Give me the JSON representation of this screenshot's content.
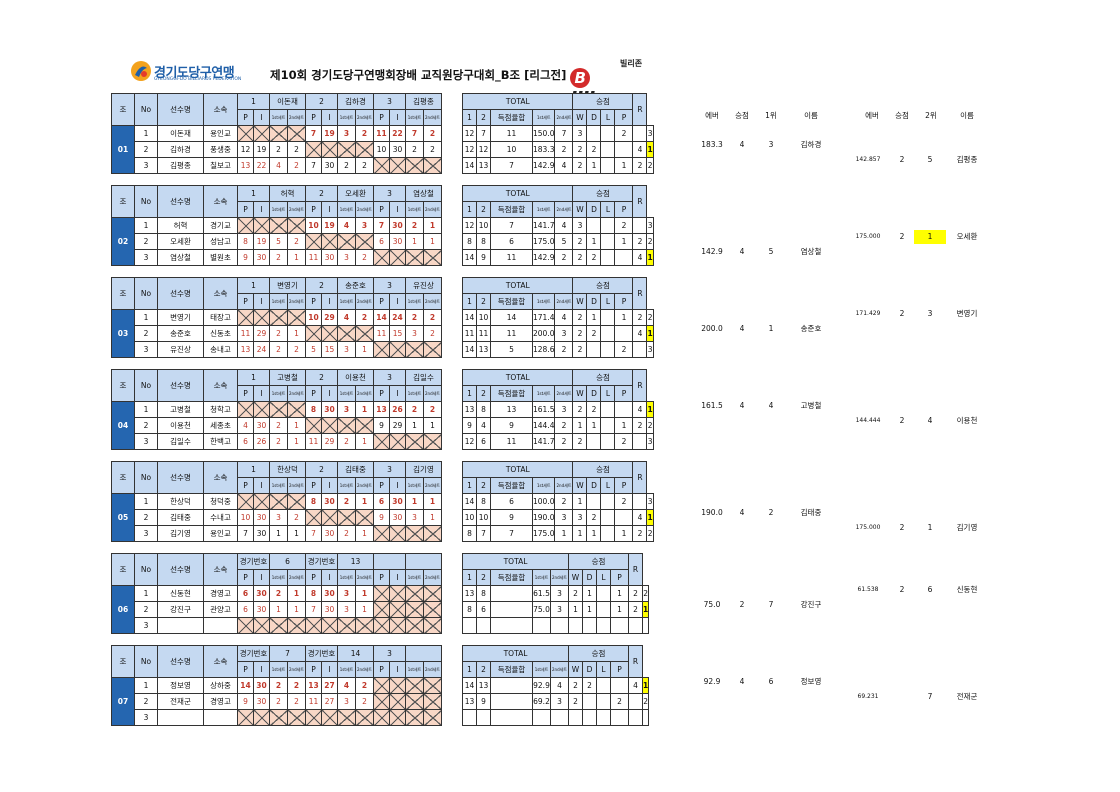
{
  "header": {
    "org_name": "경기도당구연맹",
    "org_sub": "GYEONGGI-DO BILLIARDS FEDERATION",
    "title": "제10회 경기도당구연맹회장배 교직원당구대회_B조 [리그전]",
    "sponsor_kr": "빌리존",
    "sponsor_en": "illizone",
    "sponsor_b": "B"
  },
  "labels": {
    "jo": "조",
    "no": "No",
    "player": "선수명",
    "team": "소속",
    "p": "P",
    "i": "I",
    "first": "1st세트",
    "second": "2nd세트",
    "total": "TOTAL",
    "win": "승점",
    "avg": "득점율합",
    "c1": "1",
    "c2": "2",
    "w": "W",
    "d": "D",
    "l": "L",
    "pp": "P",
    "r": "R"
  },
  "summary_headers": {
    "left": [
      "에버",
      "승점",
      "1위",
      "이름"
    ],
    "right": [
      "에버",
      "승점",
      "2위",
      "이름"
    ]
  },
  "groups": [
    {
      "jo": "01",
      "cols": [
        [
          "1",
          "이돈재"
        ],
        [
          "2",
          "김하경"
        ],
        [
          "3",
          "김평종"
        ]
      ],
      "rows": [
        {
          "no": "1",
          "name": "이돈재",
          "team": "용인교",
          "m": [
            null,
            [
              "7",
              "19",
              "3",
              "2"
            ],
            [
              "11",
              "22",
              "7",
              "2"
            ]
          ],
          "t": [
            "12",
            "7",
            "11",
            "150.0",
            "7",
            "3",
            "",
            "",
            "2",
            "",
            "3"
          ],
          "hl": false
        },
        {
          "no": "2",
          "name": "김하경",
          "team": "풍생중",
          "m": [
            [
              "12",
              "19",
              "2",
              "2"
            ],
            null,
            [
              "10",
              "30",
              "2",
              "2"
            ]
          ],
          "t": [
            "12",
            "12",
            "10",
            "183.3",
            "2",
            "2",
            "2",
            "",
            "",
            "4",
            "1"
          ],
          "hl": true
        },
        {
          "no": "3",
          "name": "김평종",
          "team": "칠보고",
          "m": [
            [
              "13",
              "22",
              "4",
              "2"
            ],
            [
              "7",
              "30",
              "2",
              "2"
            ],
            null
          ],
          "t": [
            "14",
            "13",
            "7",
            "142.9",
            "4",
            "2",
            "1",
            "",
            "1",
            "2",
            "2"
          ],
          "hl": false
        }
      ],
      "first": {
        "row": 1,
        "avg": "183.3",
        "pts": "4",
        "rank": "3",
        "name": "김하경"
      },
      "second": {
        "row": 2,
        "avg": "142.857",
        "pts": "2",
        "rank": "5",
        "name": "김평종",
        "hl": false
      }
    },
    {
      "jo": "02",
      "cols": [
        [
          "1",
          "허혁"
        ],
        [
          "2",
          "오세환"
        ],
        [
          "3",
          "염상철"
        ]
      ],
      "rows": [
        {
          "no": "1",
          "name": "허혁",
          "team": "경기교",
          "m": [
            null,
            [
              "10",
              "19",
              "4",
              "3"
            ],
            [
              "7",
              "30",
              "2",
              "1"
            ]
          ],
          "t": [
            "12",
            "10",
            "7",
            "141.7",
            "4",
            "3",
            "",
            "",
            "2",
            "",
            "3"
          ],
          "hl": false
        },
        {
          "no": "2",
          "name": "오세환",
          "team": "성남고",
          "m": [
            [
              "8",
              "19",
              "5",
              "2"
            ],
            null,
            [
              "6",
              "30",
              "1",
              "1"
            ]
          ],
          "t": [
            "8",
            "8",
            "6",
            "175.0",
            "5",
            "2",
            "1",
            "",
            "1",
            "2",
            "2"
          ],
          "hl": false
        },
        {
          "no": "3",
          "name": "염상철",
          "team": "별원초",
          "m": [
            [
              "9",
              "30",
              "2",
              "1"
            ],
            [
              "11",
              "30",
              "3",
              "2"
            ],
            null
          ],
          "t": [
            "14",
            "9",
            "11",
            "142.9",
            "2",
            "2",
            "2",
            "",
            "",
            "4",
            "1"
          ],
          "hl": true
        }
      ],
      "first": {
        "row": 2,
        "avg": "142.9",
        "pts": "4",
        "rank": "5",
        "name": "염상철"
      },
      "second": {
        "row": 1,
        "avg": "175.000",
        "pts": "2",
        "rank": "1",
        "name": "오세환",
        "hl": true
      }
    },
    {
      "jo": "03",
      "cols": [
        [
          "1",
          "변영기"
        ],
        [
          "2",
          "송준호"
        ],
        [
          "3",
          "유진상"
        ]
      ],
      "rows": [
        {
          "no": "1",
          "name": "변영기",
          "team": "태장고",
          "m": [
            null,
            [
              "10",
              "29",
              "4",
              "2"
            ],
            [
              "14",
              "24",
              "2",
              "2"
            ]
          ],
          "t": [
            "14",
            "10",
            "14",
            "171.4",
            "4",
            "2",
            "1",
            "",
            "1",
            "2",
            "2"
          ],
          "hl": false
        },
        {
          "no": "2",
          "name": "송준호",
          "team": "신동초",
          "m": [
            [
              "11",
              "29",
              "2",
              "1"
            ],
            null,
            [
              "11",
              "15",
              "3",
              "2"
            ]
          ],
          "t": [
            "11",
            "11",
            "11",
            "200.0",
            "3",
            "2",
            "2",
            "",
            "",
            "4",
            "1"
          ],
          "hl": true
        },
        {
          "no": "3",
          "name": "유진상",
          "team": "송내고",
          "m": [
            [
              "13",
              "24",
              "2",
              "2"
            ],
            [
              "5",
              "15",
              "3",
              "1"
            ],
            null
          ],
          "t": [
            "14",
            "13",
            "5",
            "128.6",
            "2",
            "2",
            "",
            "",
            "2",
            "",
            "3"
          ],
          "hl": false
        }
      ],
      "first": {
        "row": 1,
        "avg": "200.0",
        "pts": "4",
        "rank": "1",
        "name": "송준호"
      },
      "second": {
        "row": 0,
        "avg": "171.429",
        "pts": "2",
        "rank": "3",
        "name": "변영기",
        "hl": false
      }
    },
    {
      "jo": "04",
      "cols": [
        [
          "1",
          "고병철"
        ],
        [
          "2",
          "이용천"
        ],
        [
          "3",
          "김일수"
        ]
      ],
      "rows": [
        {
          "no": "1",
          "name": "고병철",
          "team": "청학고",
          "m": [
            null,
            [
              "8",
              "30",
              "3",
              "1"
            ],
            [
              "13",
              "26",
              "2",
              "2"
            ]
          ],
          "t": [
            "13",
            "8",
            "13",
            "161.5",
            "3",
            "2",
            "2",
            "",
            "",
            "4",
            "1"
          ],
          "hl": true
        },
        {
          "no": "2",
          "name": "이용천",
          "team": "세종초",
          "m": [
            [
              "4",
              "30",
              "2",
              "1"
            ],
            null,
            [
              "9",
              "29",
              "1",
              "1"
            ]
          ],
          "t": [
            "9",
            "4",
            "9",
            "144.4",
            "2",
            "1",
            "1",
            "",
            "1",
            "2",
            "2"
          ],
          "hl": false
        },
        {
          "no": "3",
          "name": "김일수",
          "team": "한백고",
          "m": [
            [
              "6",
              "26",
              "2",
              "1"
            ],
            [
              "11",
              "29",
              "2",
              "1"
            ],
            null
          ],
          "t": [
            "12",
            "6",
            "11",
            "141.7",
            "2",
            "2",
            "",
            "",
            "2",
            "",
            "3"
          ],
          "hl": false
        }
      ],
      "first": {
        "row": 0,
        "avg": "161.5",
        "pts": "4",
        "rank": "4",
        "name": "고병철"
      },
      "second": {
        "row": 1,
        "avg": "144.444",
        "pts": "2",
        "rank": "4",
        "name": "이용천",
        "hl": false
      }
    },
    {
      "jo": "05",
      "cols": [
        [
          "1",
          "한상덕"
        ],
        [
          "2",
          "김태중"
        ],
        [
          "3",
          "김기영"
        ]
      ],
      "rows": [
        {
          "no": "1",
          "name": "한상덕",
          "team": "청덕중",
          "m": [
            null,
            [
              "8",
              "30",
              "2",
              "1"
            ],
            [
              "6",
              "30",
              "1",
              "1"
            ]
          ],
          "t": [
            "14",
            "8",
            "6",
            "100.0",
            "2",
            "1",
            "",
            "",
            "2",
            "",
            "3"
          ],
          "hl": false
        },
        {
          "no": "2",
          "name": "김태중",
          "team": "수내고",
          "m": [
            [
              "10",
              "30",
              "3",
              "2"
            ],
            null,
            [
              "9",
              "30",
              "3",
              "1"
            ]
          ],
          "t": [
            "10",
            "10",
            "9",
            "190.0",
            "3",
            "3",
            "2",
            "",
            "",
            "4",
            "1"
          ],
          "hl": true
        },
        {
          "no": "3",
          "name": "김기영",
          "team": "용인교",
          "m": [
            [
              "7",
              "30",
              "1",
              "1"
            ],
            [
              "7",
              "30",
              "2",
              "1"
            ],
            null
          ],
          "t": [
            "8",
            "7",
            "7",
            "175.0",
            "1",
            "1",
            "1",
            "",
            "1",
            "2",
            "2"
          ],
          "hl": false
        }
      ],
      "first": {
        "row": 1,
        "avg": "190.0",
        "pts": "4",
        "rank": "2",
        "name": "김태중"
      },
      "second": {
        "row": 2,
        "avg": "175.000",
        "pts": "2",
        "rank": "1",
        "name": "김기영",
        "hl": false
      }
    },
    {
      "jo": "06",
      "cols": [
        [
          "경기번호",
          "6"
        ],
        [
          "경기번호",
          "13"
        ],
        [
          "",
          ""
        ]
      ],
      "rows": [
        {
          "no": "1",
          "name": "신동현",
          "team": "경영고",
          "m": [
            [
              "6",
              "30",
              "2",
              "1"
            ],
            [
              "8",
              "30",
              "3",
              "1"
            ],
            null
          ],
          "t": [
            "13",
            "8",
            "",
            "61.5",
            "3",
            "2",
            "1",
            "",
            "1",
            "2",
            "2"
          ],
          "hl": false
        },
        {
          "no": "2",
          "name": "강진구",
          "team": "관양고",
          "m": [
            [
              "6",
              "30",
              "1",
              "1"
            ],
            [
              "7",
              "30",
              "3",
              "1"
            ],
            null
          ],
          "t": [
            "8",
            "6",
            "",
            "75.0",
            "3",
            "1",
            "1",
            "",
            "1",
            "2",
            "1"
          ],
          "hl": true
        },
        {
          "no": "3",
          "name": "",
          "team": "",
          "m": [
            null,
            null,
            null
          ],
          "t": [
            "",
            "",
            "",
            "",
            "",
            "",
            "",
            "",
            "",
            "",
            ""
          ],
          "hl": false
        }
      ],
      "first": {
        "row": 1,
        "avg": "75.0",
        "pts": "2",
        "rank": "7",
        "name": "강진구"
      },
      "second": {
        "row": 0,
        "avg": "61.538",
        "pts": "2",
        "rank": "6",
        "name": "신동현",
        "hl": false
      }
    },
    {
      "jo": "07",
      "cols": [
        [
          "경기번호",
          "7"
        ],
        [
          "경기번호",
          "14"
        ],
        [
          "3",
          ""
        ]
      ],
      "rows": [
        {
          "no": "1",
          "name": "정보영",
          "team": "상하중",
          "m": [
            [
              "14",
              "30",
              "2",
              "2"
            ],
            [
              "13",
              "27",
              "4",
              "2"
            ],
            null
          ],
          "t": [
            "14",
            "13",
            "",
            "92.9",
            "4",
            "2",
            "2",
            "",
            "",
            "4",
            "1"
          ],
          "hl": true
        },
        {
          "no": "2",
          "name": "전재군",
          "team": "경영고",
          "m": [
            [
              "9",
              "30",
              "2",
              "2"
            ],
            [
              "11",
              "27",
              "3",
              "2"
            ],
            null
          ],
          "t": [
            "13",
            "9",
            "",
            "69.2",
            "3",
            "2",
            "",
            "",
            "2",
            "",
            "2"
          ],
          "hl": false
        },
        {
          "no": "3",
          "name": "",
          "team": "",
          "m": [
            null,
            null,
            null
          ],
          "t": [
            "",
            "",
            "",
            "",
            "",
            "",
            "",
            "",
            "",
            "",
            ""
          ],
          "hl": false
        }
      ],
      "first": {
        "row": 0,
        "avg": "92.9",
        "pts": "4",
        "rank": "6",
        "name": "정보영"
      },
      "second": {
        "row": 1,
        "avg": "69.231",
        "pts": "",
        "rank": "7",
        "name": "전재군",
        "hl": false
      }
    }
  ]
}
